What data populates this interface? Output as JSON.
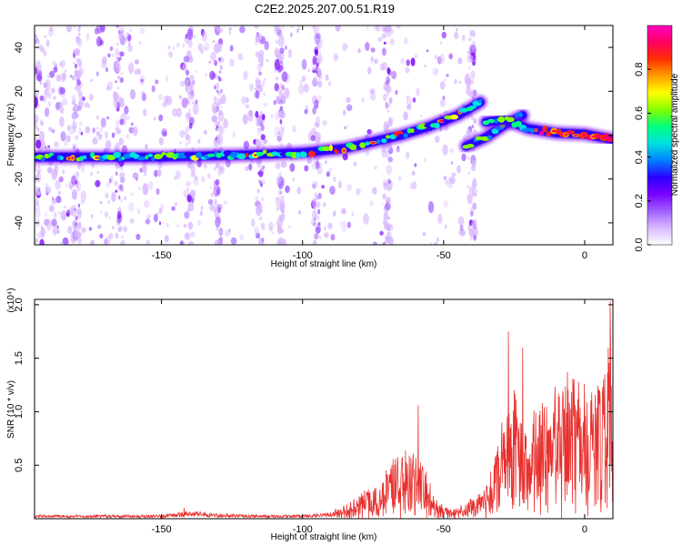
{
  "figure_title": "C2E2.2025.207.00.51.R19",
  "chart_data": [
    {
      "type": "heatmap",
      "xlabel": "Height of straight line (km)",
      "ylabel": "Frequency (Hz)",
      "xlim": [
        -195,
        10
      ],
      "ylim": [
        -50,
        50
      ],
      "x_ticks": [
        -150,
        -100,
        -50,
        0
      ],
      "y_ticks": [
        -40,
        -20,
        0,
        20,
        40
      ],
      "colorbar": {
        "label": "Normalized spectral amplitude",
        "range": [
          0,
          1
        ],
        "ticks": [
          0.0,
          0.2,
          0.4,
          0.6,
          0.8
        ],
        "colors": [
          "#ffffff",
          "#d9b8ff",
          "#a060ff",
          "#7a00ff",
          "#2a00ff",
          "#0080ff",
          "#00e0e0",
          "#00ff80",
          "#80ff00",
          "#ffff00",
          "#ffa000",
          "#ff3000",
          "#ff0060",
          "#ff00c0"
        ]
      },
      "ridges": [
        {
          "x": [
            -195,
            -150,
            -120,
            -100,
            -85,
            -75,
            -65,
            -55,
            -45,
            -37
          ],
          "y": [
            -10,
            -10,
            -9,
            -8,
            -6,
            -3,
            0,
            4,
            9,
            15
          ]
        },
        {
          "x": [
            -42,
            -35,
            -28,
            -22
          ],
          "y": [
            -5,
            -1,
            5,
            9
          ]
        },
        {
          "x": [
            -35,
            -28,
            -20,
            -10,
            0,
            10
          ],
          "y": [
            6,
            7,
            3,
            1,
            0.5,
            -2
          ]
        }
      ],
      "grid": false
    },
    {
      "type": "line",
      "xlabel": "Height of straight line (km)",
      "ylabel": "SNR (10 * v/v)",
      "y_multiplier": "(x10⁴)",
      "xlim": [
        -195,
        10
      ],
      "ylim": [
        0,
        2.05
      ],
      "x_ticks": [
        -150,
        -100,
        -50,
        0
      ],
      "y_ticks": [
        0.5,
        1.0,
        1.5,
        2.0
      ],
      "y_tick_labels": [
        "0.5",
        "1.0",
        "1.5",
        "2.0"
      ],
      "series": [
        {
          "color": "#e8302e",
          "envelope_x": [
            -195,
            -150,
            -140,
            -120,
            -100,
            -90,
            -85,
            -80,
            -75,
            -70,
            -67,
            -65,
            -62,
            -60,
            -57,
            -55,
            -52,
            -50,
            -47,
            -45,
            -42,
            -40,
            -37,
            -35,
            -32,
            -30,
            -28,
            -27,
            -26,
            -25,
            -23,
            -22,
            -20,
            -18,
            -17,
            -15,
            -12,
            -10,
            -8,
            -6,
            -5,
            -3,
            -1,
            1,
            3,
            5,
            7,
            9,
            10
          ],
          "envelope_y": [
            0.03,
            0.03,
            0.06,
            0.03,
            0.03,
            0.05,
            0.12,
            0.22,
            0.3,
            0.45,
            0.55,
            0.6,
            0.7,
            0.6,
            0.5,
            0.35,
            0.2,
            0.12,
            0.08,
            0.1,
            0.15,
            0.2,
            0.25,
            0.3,
            0.55,
            0.7,
            1.0,
            1.1,
            0.9,
            1.25,
            1.0,
            0.9,
            0.8,
            1.05,
            1.1,
            1.1,
            1.0,
            1.2,
            1.2,
            1.35,
            1.25,
            1.35,
            1.3,
            1.2,
            1.3,
            1.3,
            1.35,
            1.6,
            1.2
          ],
          "peaks": [
            {
              "x": -142,
              "y": 0.1
            },
            {
              "x": -59,
              "y": 1.06
            },
            {
              "x": -27,
              "y": 1.75
            },
            {
              "x": -22,
              "y": 1.6
            },
            {
              "x": 9,
              "y": 2.03
            }
          ]
        }
      ],
      "grid": false
    }
  ]
}
